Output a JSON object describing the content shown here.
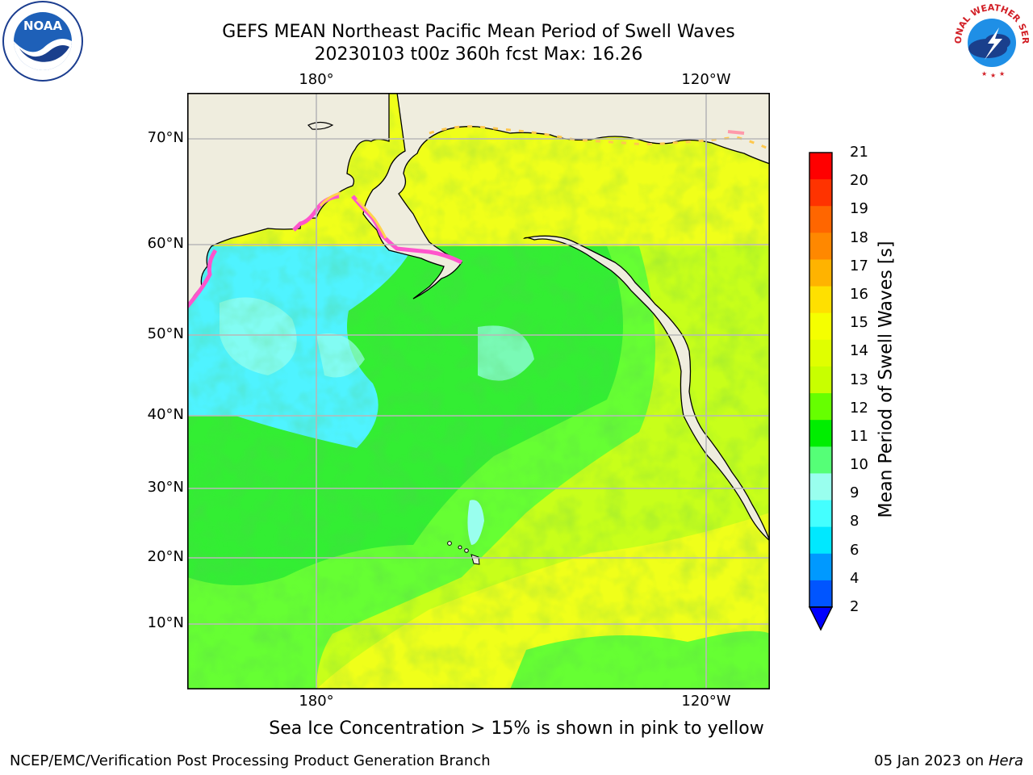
{
  "title": {
    "line1": "GEFS MEAN Northeast Pacific Mean Period of Swell Waves",
    "line2": "20230103 t00z 360h fcst   Max: 16.26"
  },
  "map": {
    "lon_labels_top": [
      "180°",
      "120°W"
    ],
    "lon_labels_bottom": [
      "180°",
      "120°W"
    ],
    "lat_labels": [
      "70°N",
      "60°N",
      "50°N",
      "40°N",
      "30°N",
      "20°N",
      "10°N"
    ],
    "colors": {
      "land": "#efedde",
      "ocean_far_west_cyan": "#4ff3ff",
      "ocean_green": "#33f033",
      "ocean_light_green": "#66ff33",
      "ocean_yellowgreen": "#c8ff1a",
      "ocean_yellow": "#f0ff1a",
      "sea_ice": "#ff66cc",
      "gridline": "#b8b8b8",
      "coastline": "#000000"
    }
  },
  "colorbar": {
    "title": "Mean Period of Swell Waves [s]",
    "labels": [
      "21",
      "20",
      "19",
      "18",
      "17",
      "16",
      "15",
      "14",
      "13",
      "12",
      "11",
      "10",
      "9",
      "8",
      "6",
      "4",
      "2"
    ],
    "colors": [
      "#ff0000",
      "#ff3300",
      "#ff6600",
      "#ff8800",
      "#ffb300",
      "#ffe000",
      "#f5ff00",
      "#e0ff00",
      "#c8ff00",
      "#66ff00",
      "#00ee00",
      "#55ff77",
      "#99ffee",
      "#44ffff",
      "#00e8ff",
      "#0099ff",
      "#0055ff"
    ],
    "under_color": "#0000ff"
  },
  "note": "Sea Ice Concentration > 15% is shown in pink to yellow",
  "footer": {
    "left": "NCEP/EMC/Verification Post Processing Product Generation Branch",
    "right_date": "05 Jan 2023 on ",
    "right_host": "Hera"
  },
  "logos": {
    "noaa": "NOAA",
    "nws_text": "NATIONAL WEATHER SERVICE"
  }
}
